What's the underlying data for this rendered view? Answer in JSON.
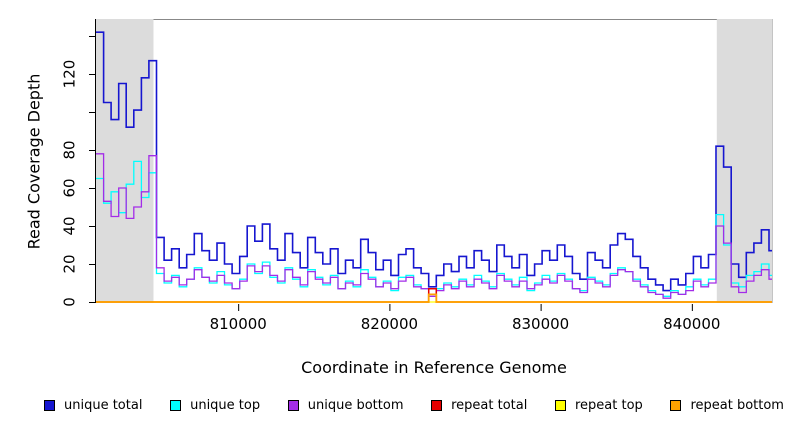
{
  "chart_data": {
    "type": "line",
    "line_style": "step",
    "title": "",
    "xlabel": "Coordinate in Reference Genome",
    "ylabel": "Read Coverage Depth",
    "xlim": [
      800600,
      845300
    ],
    "ylim": [
      0,
      149
    ],
    "x_ticks": [
      810000,
      820000,
      830000,
      840000
    ],
    "y_ticks": [
      0,
      20,
      40,
      60,
      80,
      100,
      120,
      140
    ],
    "y_tick_labels": [
      0,
      20,
      40,
      60,
      80,
      120
    ],
    "grid": false,
    "legend_position": "bottom",
    "shade_color": "#dcdcdc",
    "shaded_regions": [
      [
        800600,
        804400
      ],
      [
        841650,
        845300
      ]
    ],
    "x_start": 800600,
    "x_step": 500,
    "series": [
      {
        "name": "unique total",
        "color": "#1616d0",
        "values": [
          142,
          105,
          96,
          115,
          92,
          101,
          118,
          127,
          34,
          22,
          28,
          18,
          25,
          36,
          27,
          22,
          31,
          20,
          15,
          24,
          40,
          32,
          41,
          28,
          22,
          36,
          26,
          18,
          34,
          26,
          20,
          28,
          15,
          22,
          18,
          33,
          26,
          17,
          22,
          14,
          25,
          28,
          18,
          15,
          8,
          14,
          20,
          16,
          24,
          18,
          27,
          22,
          16,
          30,
          24,
          18,
          25,
          14,
          20,
          27,
          22,
          30,
          24,
          15,
          12,
          26,
          22,
          18,
          30,
          36,
          33,
          24,
          18,
          12,
          9,
          6,
          12,
          9,
          15,
          24,
          18,
          25,
          82,
          71,
          20,
          13,
          26,
          31,
          38,
          27
        ]
      },
      {
        "name": "unique top",
        "color": "#00ffff",
        "values": [
          65,
          52,
          58,
          47,
          62,
          74,
          55,
          68,
          15,
          10,
          14,
          8,
          12,
          18,
          13,
          10,
          16,
          9,
          7,
          12,
          20,
          15,
          21,
          13,
          10,
          18,
          12,
          8,
          17,
          13,
          9,
          14,
          7,
          11,
          8,
          17,
          13,
          8,
          11,
          6,
          13,
          14,
          9,
          7,
          4,
          7,
          10,
          8,
          12,
          9,
          14,
          11,
          8,
          15,
          12,
          9,
          13,
          6,
          10,
          14,
          11,
          15,
          12,
          7,
          6,
          13,
          11,
          9,
          15,
          18,
          16,
          12,
          9,
          6,
          4,
          3,
          6,
          4,
          8,
          12,
          9,
          12,
          46,
          30,
          10,
          8,
          14,
          16,
          20,
          14
        ]
      },
      {
        "name": "unique bottom",
        "color": "#a32ce8",
        "values": [
          78,
          53,
          45,
          60,
          44,
          50,
          58,
          77,
          18,
          11,
          13,
          9,
          12,
          17,
          13,
          11,
          14,
          10,
          7,
          11,
          19,
          16,
          19,
          14,
          11,
          17,
          13,
          9,
          16,
          12,
          10,
          13,
          7,
          10,
          9,
          15,
          12,
          8,
          10,
          7,
          11,
          13,
          8,
          7,
          3,
          6,
          9,
          7,
          11,
          8,
          12,
          10,
          7,
          14,
          11,
          8,
          11,
          7,
          9,
          12,
          10,
          14,
          11,
          7,
          5,
          12,
          10,
          8,
          14,
          17,
          16,
          11,
          8,
          5,
          4,
          2,
          5,
          4,
          6,
          11,
          8,
          10,
          40,
          31,
          8,
          5,
          11,
          14,
          17,
          12
        ]
      },
      {
        "name": "repeat total",
        "color": "#e60000",
        "values": [
          0,
          0,
          0,
          0,
          0,
          0,
          0,
          0,
          0,
          0,
          0,
          0,
          0,
          0,
          0,
          0,
          0,
          0,
          0,
          0,
          0,
          0,
          0,
          0,
          0,
          0,
          0,
          0,
          0,
          0,
          0,
          0,
          0,
          0,
          0,
          0,
          0,
          0,
          0,
          0,
          0,
          0,
          0,
          0,
          7,
          0,
          0,
          0,
          0,
          0,
          0,
          0,
          0,
          0,
          0,
          0,
          0,
          0,
          0,
          0,
          0,
          0,
          0,
          0,
          0,
          0,
          0,
          0,
          0,
          0,
          0,
          0,
          0,
          0,
          0,
          0,
          0,
          0,
          0,
          0,
          0,
          0,
          0,
          0,
          0,
          0,
          0,
          0,
          0,
          0
        ]
      },
      {
        "name": "repeat top",
        "color": "#ffff00",
        "values": [
          0,
          0,
          0,
          0,
          0,
          0,
          0,
          0,
          0,
          0,
          0,
          0,
          0,
          0,
          0,
          0,
          0,
          0,
          0,
          0,
          0,
          0,
          0,
          0,
          0,
          0,
          0,
          0,
          0,
          0,
          0,
          0,
          0,
          0,
          0,
          0,
          0,
          0,
          0,
          0,
          0,
          0,
          0,
          0,
          0,
          0,
          0,
          0,
          0,
          0,
          0,
          0,
          0,
          0,
          0,
          0,
          0,
          0,
          0,
          0,
          0,
          0,
          0,
          0,
          0,
          0,
          0,
          0,
          0,
          0,
          0,
          0,
          0,
          0,
          0,
          0,
          0,
          0,
          0,
          0,
          0,
          0,
          0,
          0,
          0,
          0,
          0,
          0,
          0,
          0
        ]
      },
      {
        "name": "repeat bottom",
        "color": "#ffa200",
        "values": [
          0,
          0,
          0,
          0,
          0,
          0,
          0,
          0,
          0,
          0,
          0,
          0,
          0,
          0,
          0,
          0,
          0,
          0,
          0,
          0,
          0,
          0,
          0,
          0,
          0,
          0,
          0,
          0,
          0,
          0,
          0,
          0,
          0,
          0,
          0,
          0,
          0,
          0,
          0,
          0,
          0,
          0,
          0,
          0,
          4,
          0,
          0,
          0,
          0,
          0,
          0,
          0,
          0,
          0,
          0,
          0,
          0,
          0,
          0,
          0,
          0,
          0,
          0,
          0,
          0,
          0,
          0,
          0,
          0,
          0,
          0,
          0,
          0,
          0,
          0,
          0,
          0,
          0,
          0,
          0,
          0,
          0,
          0,
          0,
          0,
          0,
          0,
          0,
          0,
          0
        ]
      }
    ]
  }
}
